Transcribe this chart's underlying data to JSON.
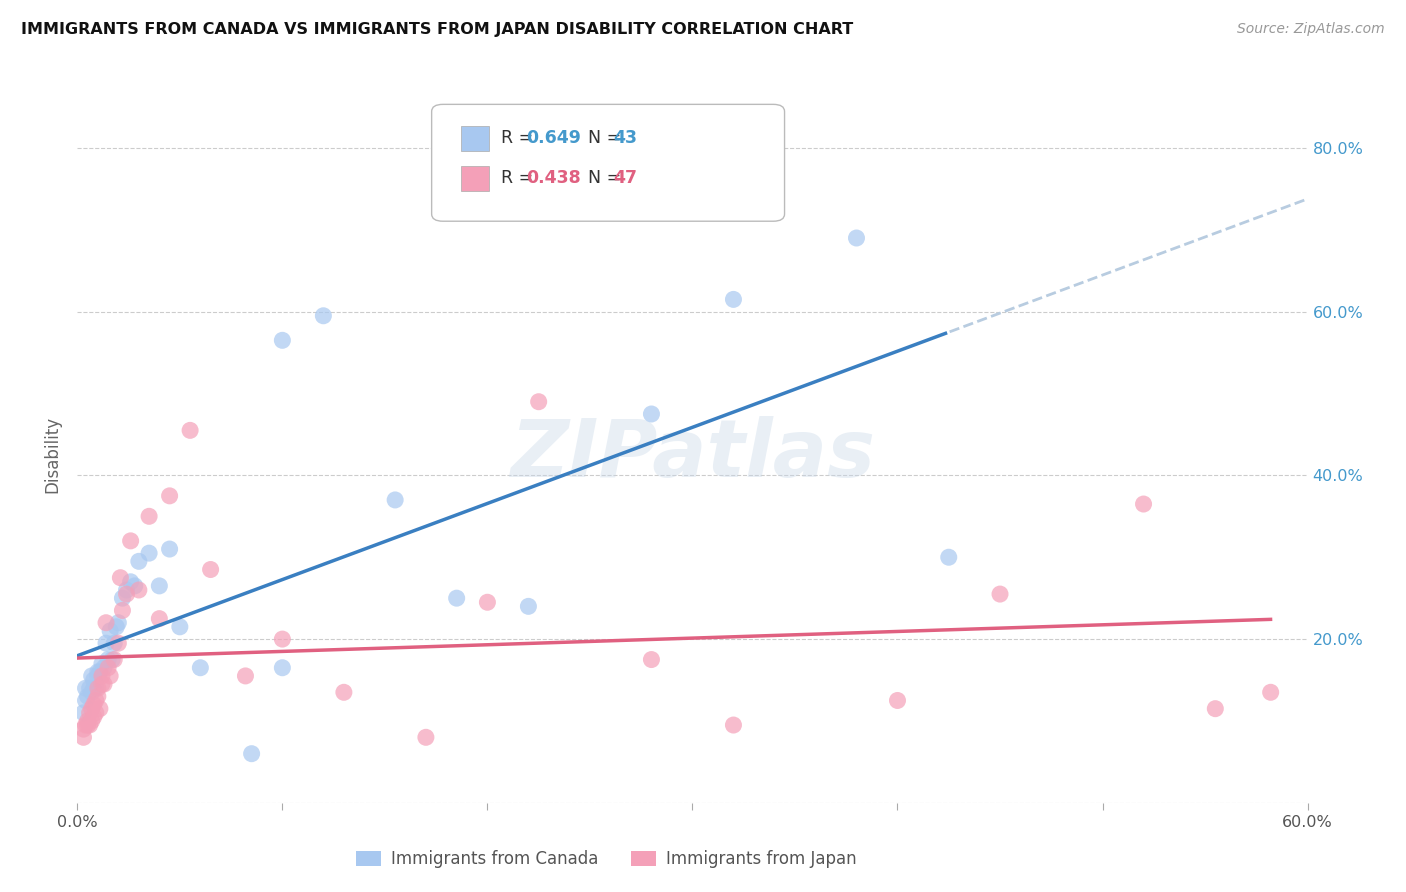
{
  "title": "IMMIGRANTS FROM CANADA VS IMMIGRANTS FROM JAPAN DISABILITY CORRELATION CHART",
  "source": "Source: ZipAtlas.com",
  "ylabel": "Disability",
  "xlim": [
    0.0,
    0.6
  ],
  "ylim": [
    0.0,
    0.85
  ],
  "color_canada": "#A8C8F0",
  "color_japan": "#F4A0B8",
  "trendline_canada_color": "#3A7FC1",
  "trendline_japan_color": "#E06080",
  "trendline_dashed_color": "#B8CCE0",
  "legend_r_canada": "0.649",
  "legend_n_canada": "43",
  "legend_r_japan": "0.438",
  "legend_n_japan": "47",
  "r_color_canada": "#4499CC",
  "r_color_japan": "#E06080",
  "watermark": "ZIPatlas",
  "canada_x": [
    0.003,
    0.004,
    0.004,
    0.005,
    0.006,
    0.007,
    0.007,
    0.008,
    0.008,
    0.009,
    0.01,
    0.01,
    0.011,
    0.012,
    0.013,
    0.014,
    0.015,
    0.016,
    0.017,
    0.018,
    0.019,
    0.02,
    0.022,
    0.024,
    0.026,
    0.028,
    0.03,
    0.035,
    0.04,
    0.045,
    0.05,
    0.06,
    0.085,
    0.1,
    0.1,
    0.12,
    0.155,
    0.185,
    0.22,
    0.28,
    0.32,
    0.38,
    0.425
  ],
  "canada_y": [
    0.11,
    0.125,
    0.14,
    0.13,
    0.14,
    0.135,
    0.155,
    0.14,
    0.15,
    0.14,
    0.155,
    0.16,
    0.16,
    0.17,
    0.165,
    0.195,
    0.175,
    0.21,
    0.175,
    0.195,
    0.215,
    0.22,
    0.25,
    0.26,
    0.27,
    0.265,
    0.295,
    0.305,
    0.265,
    0.31,
    0.215,
    0.165,
    0.06,
    0.165,
    0.565,
    0.595,
    0.37,
    0.25,
    0.24,
    0.475,
    0.615,
    0.69,
    0.3
  ],
  "japan_x": [
    0.003,
    0.003,
    0.004,
    0.005,
    0.005,
    0.006,
    0.006,
    0.007,
    0.007,
    0.008,
    0.008,
    0.009,
    0.009,
    0.01,
    0.01,
    0.011,
    0.012,
    0.012,
    0.013,
    0.014,
    0.015,
    0.016,
    0.018,
    0.02,
    0.021,
    0.022,
    0.024,
    0.026,
    0.03,
    0.035,
    0.04,
    0.045,
    0.055,
    0.065,
    0.082,
    0.1,
    0.13,
    0.17,
    0.2,
    0.225,
    0.28,
    0.32,
    0.4,
    0.45,
    0.52,
    0.555,
    0.582
  ],
  "japan_y": [
    0.08,
    0.09,
    0.095,
    0.095,
    0.1,
    0.095,
    0.11,
    0.1,
    0.115,
    0.105,
    0.12,
    0.11,
    0.125,
    0.13,
    0.14,
    0.115,
    0.145,
    0.155,
    0.145,
    0.22,
    0.165,
    0.155,
    0.175,
    0.195,
    0.275,
    0.235,
    0.255,
    0.32,
    0.26,
    0.35,
    0.225,
    0.375,
    0.455,
    0.285,
    0.155,
    0.2,
    0.135,
    0.08,
    0.245,
    0.49,
    0.175,
    0.095,
    0.125,
    0.255,
    0.365,
    0.115,
    0.135
  ]
}
